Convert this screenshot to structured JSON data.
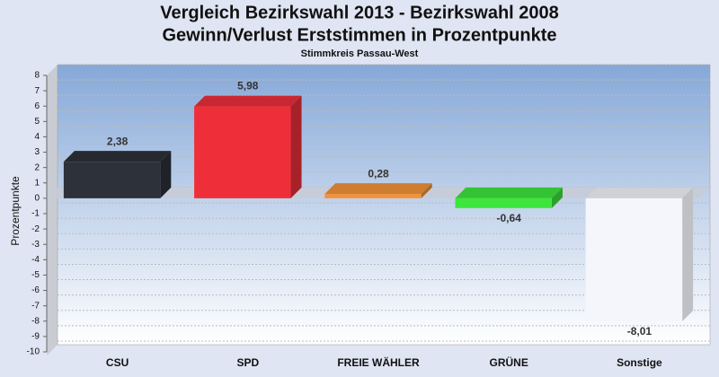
{
  "chart_data": {
    "type": "bar",
    "title": "Vergleich Bezirkswahl 2013 - Bezirkswahl 2008",
    "subtitle": "Gewinn/Verlust Erststimmen in Prozentpunkte",
    "caption": "Stimmkreis Passau-West",
    "y_label": "Prozentpunkte",
    "categories": [
      "CSU",
      "SPD",
      "FREIE WÄHLER",
      "GRÜNE",
      "Sonstige"
    ],
    "values": [
      2.38,
      5.98,
      0.28,
      -0.64,
      -8.01
    ],
    "value_labels": [
      "2,38",
      "5,98",
      "0,28",
      "-0,64",
      "-8,01"
    ],
    "colors": [
      "#2d3139",
      "#ee2f3a",
      "#f2933a",
      "#3de53d",
      "#f5f6fb"
    ],
    "ylim": [
      -10,
      8
    ],
    "yticks": [
      8,
      7,
      6,
      5,
      4,
      3,
      2,
      1,
      0,
      -1,
      -2,
      -3,
      -4,
      -5,
      -6,
      -7,
      -8,
      -9,
      -10
    ],
    "grid": true
  }
}
